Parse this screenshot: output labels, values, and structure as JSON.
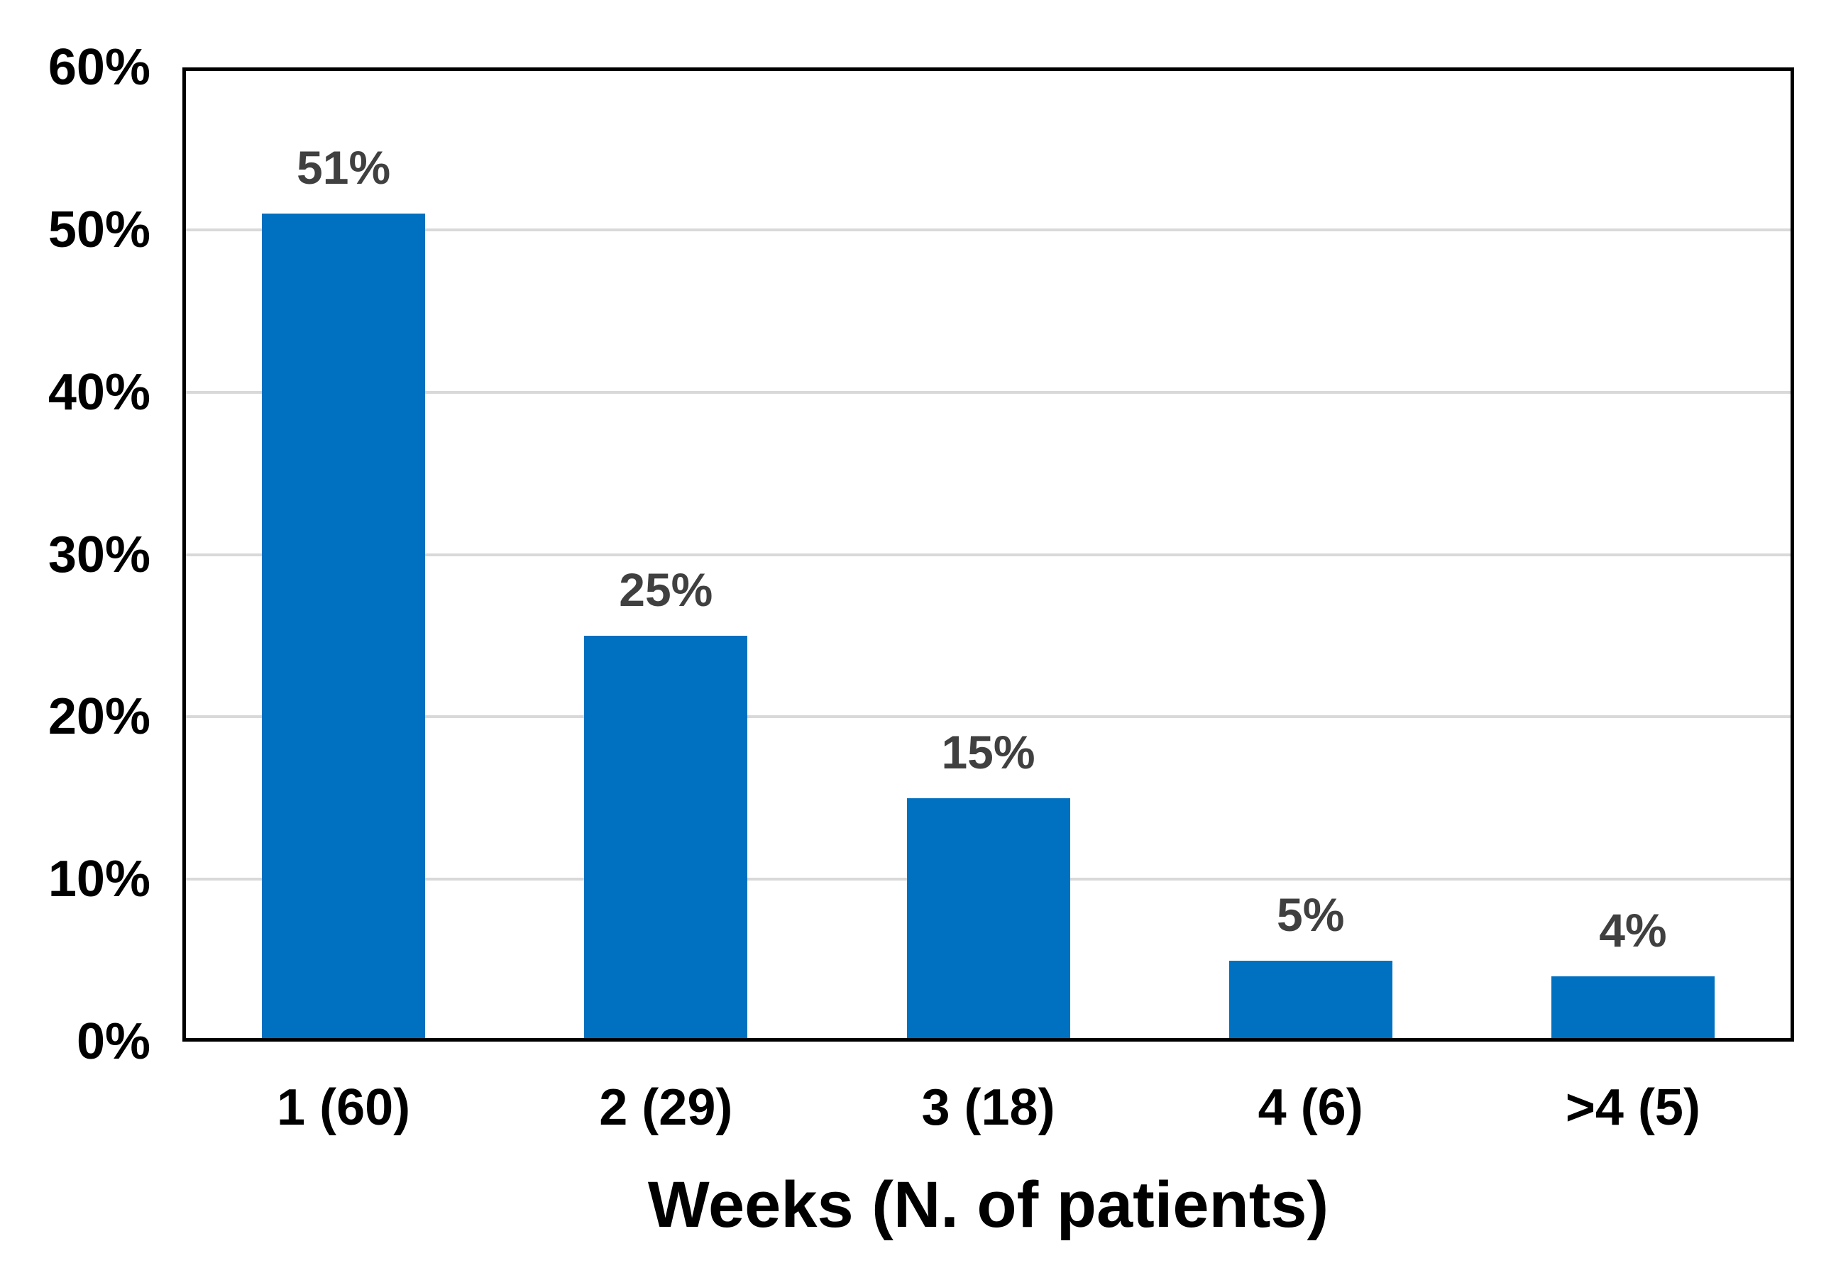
{
  "chart_data": {
    "type": "bar",
    "categories": [
      "1 (60)",
      "2 (29)",
      "3 (18)",
      "4 (6)",
      ">4 (5)"
    ],
    "values": [
      51,
      25,
      15,
      5,
      4
    ],
    "bar_labels": [
      "51%",
      "25%",
      "15%",
      "5%",
      "4%"
    ],
    "title": "",
    "xlabel": "Weeks (N. of patients)",
    "ylabel": "",
    "ylim": [
      0,
      60
    ],
    "ytick_step": 10,
    "ytick_labels": [
      "0%",
      "10%",
      "20%",
      "30%",
      "40%",
      "50%",
      "60%"
    ],
    "grid": "horizontal-light",
    "legend": "none",
    "colors": {
      "bar": "#0070C0",
      "bar_label": "#404040",
      "gridline": "#D9D9D9",
      "axis_border": "#000000",
      "tick_label": "#000000",
      "axis_title": "#000000",
      "background": "#FFFFFF"
    }
  }
}
